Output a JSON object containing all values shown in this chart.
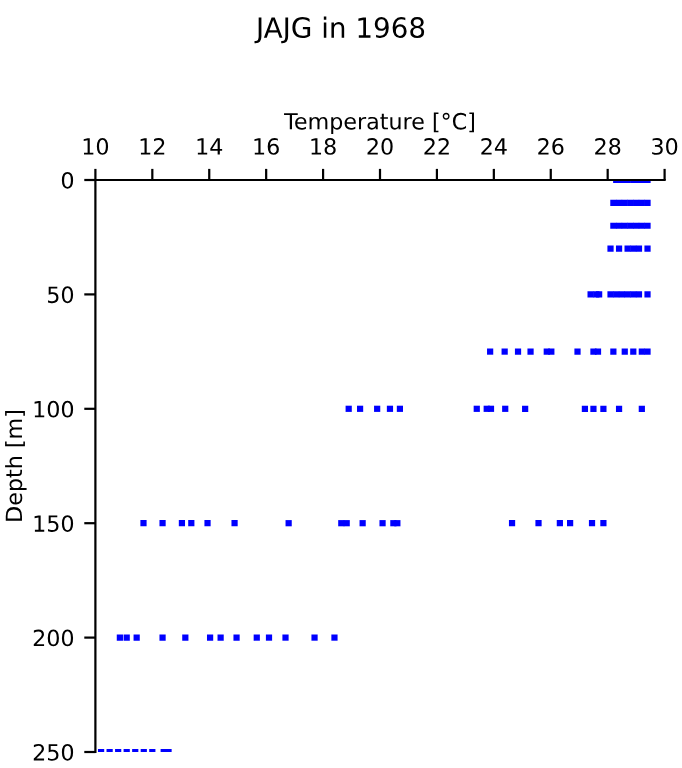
{
  "chart_data": {
    "type": "scatter",
    "title": "JAJG in 1968",
    "xlabel": "Temperature [°C]",
    "ylabel": "Depth [m]",
    "xlim": [
      10,
      30
    ],
    "xticks": [
      10,
      12,
      14,
      16,
      18,
      20,
      22,
      24,
      26,
      28,
      30
    ],
    "ylim": [
      250,
      0
    ],
    "yticks": [
      0,
      50,
      100,
      150,
      200,
      250
    ],
    "marker": "square",
    "grid": false,
    "series": [
      {
        "color": "#0000ff",
        "x": [
          28.3,
          28.5,
          28.7,
          28.9,
          29.1,
          29.3,
          29.4,
          28.2,
          28.4,
          28.6,
          28.8,
          29.0,
          29.2,
          29.4,
          28.2,
          28.4,
          28.6,
          28.8,
          29.0,
          29.2,
          29.4,
          28.1,
          28.4,
          28.7,
          28.9,
          29.1,
          29.4,
          27.4,
          27.6,
          27.7,
          28.1,
          28.3,
          28.5,
          28.7,
          28.9,
          29.1,
          29.4,
          23.87,
          24.38,
          24.85,
          25.29,
          25.86,
          26.02,
          26.94,
          27.5,
          27.66,
          28.2,
          28.6,
          28.9,
          29.2,
          29.4,
          18.9,
          19.3,
          19.9,
          20.35,
          20.7,
          23.4,
          23.75,
          23.9,
          24.4,
          25.1,
          27.2,
          27.5,
          27.85,
          28.4,
          29.2,
          11.69,
          12.36,
          13.04,
          13.37,
          13.94,
          14.89,
          16.79,
          18.64,
          18.83,
          19.39,
          20.09,
          20.47,
          20.61,
          24.64,
          25.57,
          26.32,
          26.68,
          27.45,
          27.85,
          10.86,
          11.1,
          11.45,
          12.36,
          13.16,
          14.03,
          14.4,
          14.96,
          15.67,
          16.1,
          16.68,
          17.7,
          18.4,
          10.2,
          10.5,
          10.8,
          11.1,
          11.4,
          11.7,
          12.0,
          12.4,
          12.57
        ],
        "values": [
          0,
          0,
          0,
          0,
          0,
          0,
          0,
          10,
          10,
          10,
          10,
          10,
          10,
          10,
          20,
          20,
          20,
          20,
          20,
          20,
          20,
          30,
          30,
          30,
          30,
          30,
          30,
          50,
          50,
          50,
          50,
          50,
          50,
          50,
          50,
          50,
          50,
          75,
          75,
          75,
          75,
          75,
          75,
          75,
          75,
          75,
          75,
          75,
          75,
          75,
          75,
          100,
          100,
          100,
          100,
          100,
          100,
          100,
          100,
          100,
          100,
          100,
          100,
          100,
          100,
          100,
          150,
          150,
          150,
          150,
          150,
          150,
          150,
          150,
          150,
          150,
          150,
          150,
          150,
          150,
          150,
          150,
          150,
          150,
          150,
          200,
          200,
          200,
          200,
          200,
          200,
          200,
          200,
          200,
          200,
          200,
          200,
          200,
          250,
          250,
          250,
          250,
          250,
          250,
          250,
          250,
          250
        ]
      }
    ]
  }
}
